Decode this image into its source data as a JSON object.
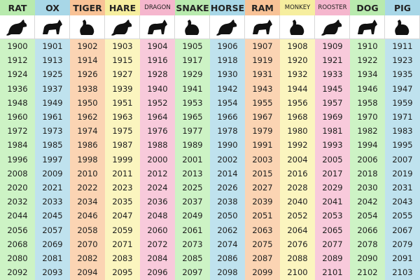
{
  "table": {
    "columns": [
      {
        "name": "RAT",
        "years": [
          1900,
          1912,
          1924,
          1936,
          1948,
          1960,
          1972,
          1984,
          1996,
          2008,
          2020,
          2032,
          2044,
          2056,
          2068,
          2080,
          2092
        ]
      },
      {
        "name": "OX",
        "years": [
          1901,
          1913,
          1925,
          1937,
          1949,
          1961,
          1973,
          1985,
          1997,
          2009,
          2021,
          2033,
          2045,
          2057,
          2069,
          2081,
          2093
        ]
      },
      {
        "name": "TIGER",
        "years": [
          1902,
          1914,
          1926,
          1938,
          1950,
          1962,
          1974,
          1986,
          1998,
          2010,
          2022,
          2034,
          2046,
          2058,
          2070,
          2082,
          2094
        ]
      },
      {
        "name": "HARE",
        "years": [
          1903,
          1915,
          1927,
          1939,
          1951,
          1963,
          1975,
          1987,
          1999,
          2011,
          2023,
          2035,
          2047,
          2059,
          2071,
          2083,
          2095
        ]
      },
      {
        "name": "DRAGON",
        "years": [
          1904,
          1916,
          1928,
          1940,
          1952,
          1964,
          1976,
          1988,
          2000,
          2012,
          2024,
          2036,
          2048,
          2060,
          2072,
          2084,
          2096
        ]
      },
      {
        "name": "SNAKE",
        "years": [
          1905,
          1917,
          1929,
          1941,
          1953,
          1965,
          1977,
          1989,
          2001,
          2013,
          2025,
          2037,
          2049,
          2061,
          2073,
          2085,
          2097
        ]
      },
      {
        "name": "HORSE",
        "years": [
          1906,
          1918,
          1930,
          1942,
          1954,
          1966,
          1978,
          1990,
          2002,
          2014,
          2026,
          2038,
          2050,
          2062,
          2074,
          2086,
          2098
        ]
      },
      {
        "name": "RAM",
        "years": [
          1907,
          1919,
          1931,
          1943,
          1955,
          1967,
          1979,
          1991,
          2003,
          2015,
          2027,
          2039,
          2051,
          2063,
          2075,
          2087,
          2099
        ]
      },
      {
        "name": "MONKEY",
        "years": [
          1908,
          1920,
          1932,
          1944,
          1956,
          1968,
          1980,
          1992,
          2004,
          2016,
          2028,
          2040,
          2052,
          2064,
          2076,
          2088,
          2100
        ]
      },
      {
        "name": "ROOSTER",
        "years": [
          1909,
          1921,
          1933,
          1945,
          1957,
          1969,
          1981,
          1993,
          2005,
          2017,
          2029,
          2041,
          2053,
          2065,
          2077,
          2089,
          2101
        ]
      },
      {
        "name": "DOG",
        "years": [
          1910,
          1922,
          1934,
          1946,
          1958,
          1970,
          1982,
          1994,
          2006,
          2018,
          2030,
          2042,
          2054,
          2066,
          2078,
          2090,
          2102
        ]
      },
      {
        "name": "PIG",
        "years": [
          1911,
          1923,
          1935,
          1947,
          1959,
          1971,
          1983,
          1995,
          2007,
          2019,
          2031,
          2043,
          2055,
          2067,
          2079,
          2091,
          2103
        ]
      }
    ]
  }
}
